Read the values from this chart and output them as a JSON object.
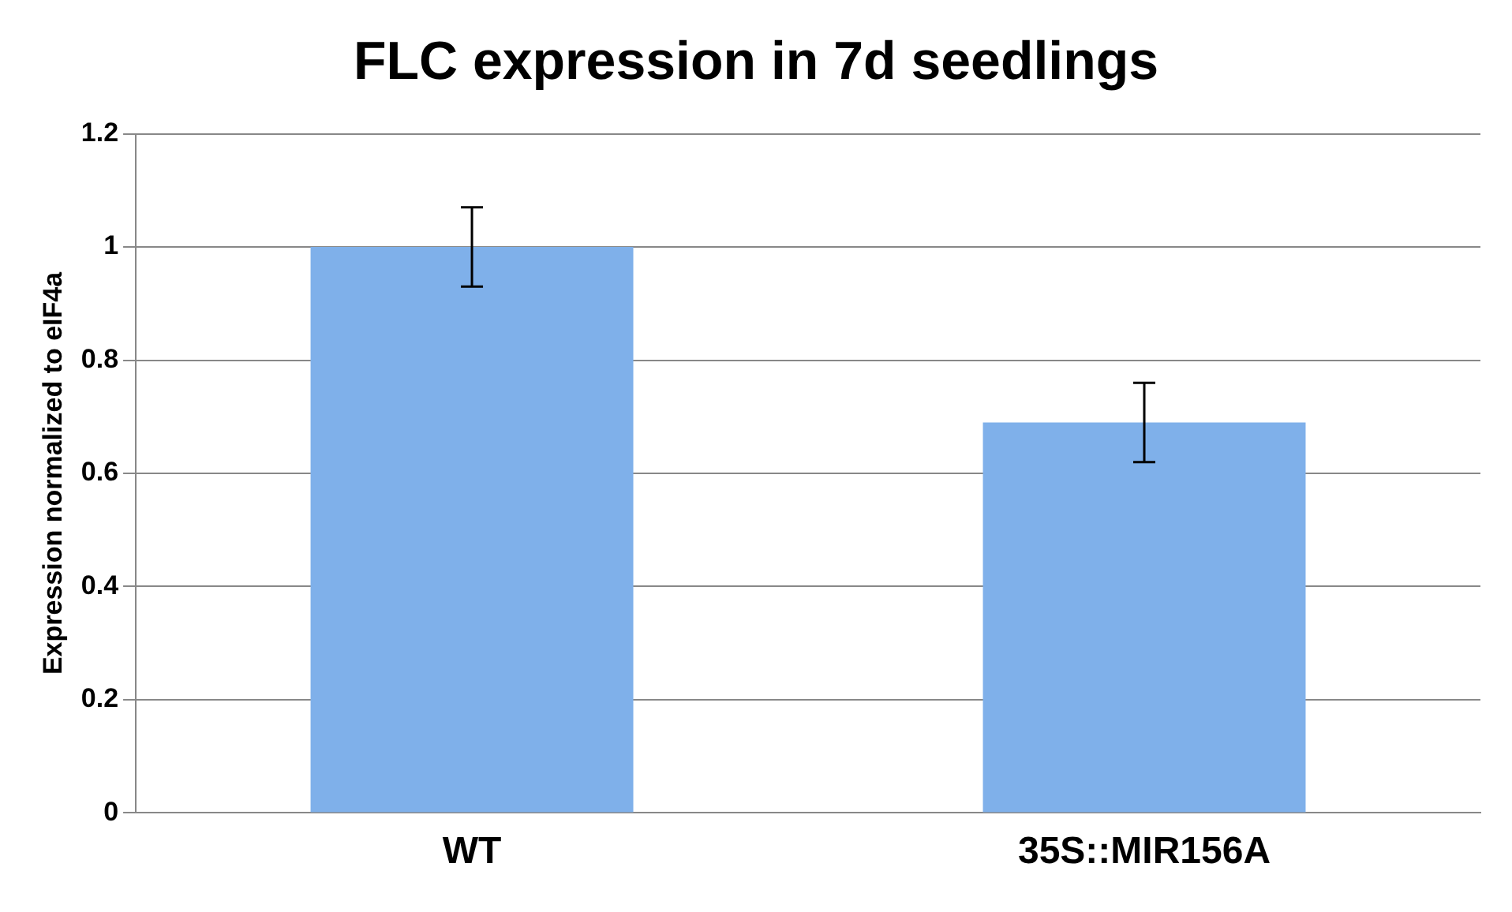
{
  "chart_data": {
    "type": "bar",
    "title": "FLC expression in 7d seedlings",
    "ylabel": "Expression normalized to eIF4a",
    "categories": [
      "WT",
      "35S::MIR156A"
    ],
    "values": [
      1.0,
      0.69
    ],
    "errors": [
      0.07,
      0.07
    ],
    "color": "#7fb0ea",
    "ylim": [
      0,
      1.2
    ],
    "yticks": [
      0,
      0.2,
      0.4,
      0.6,
      0.8,
      1,
      1.2
    ],
    "grid": "y",
    "legend": false
  }
}
